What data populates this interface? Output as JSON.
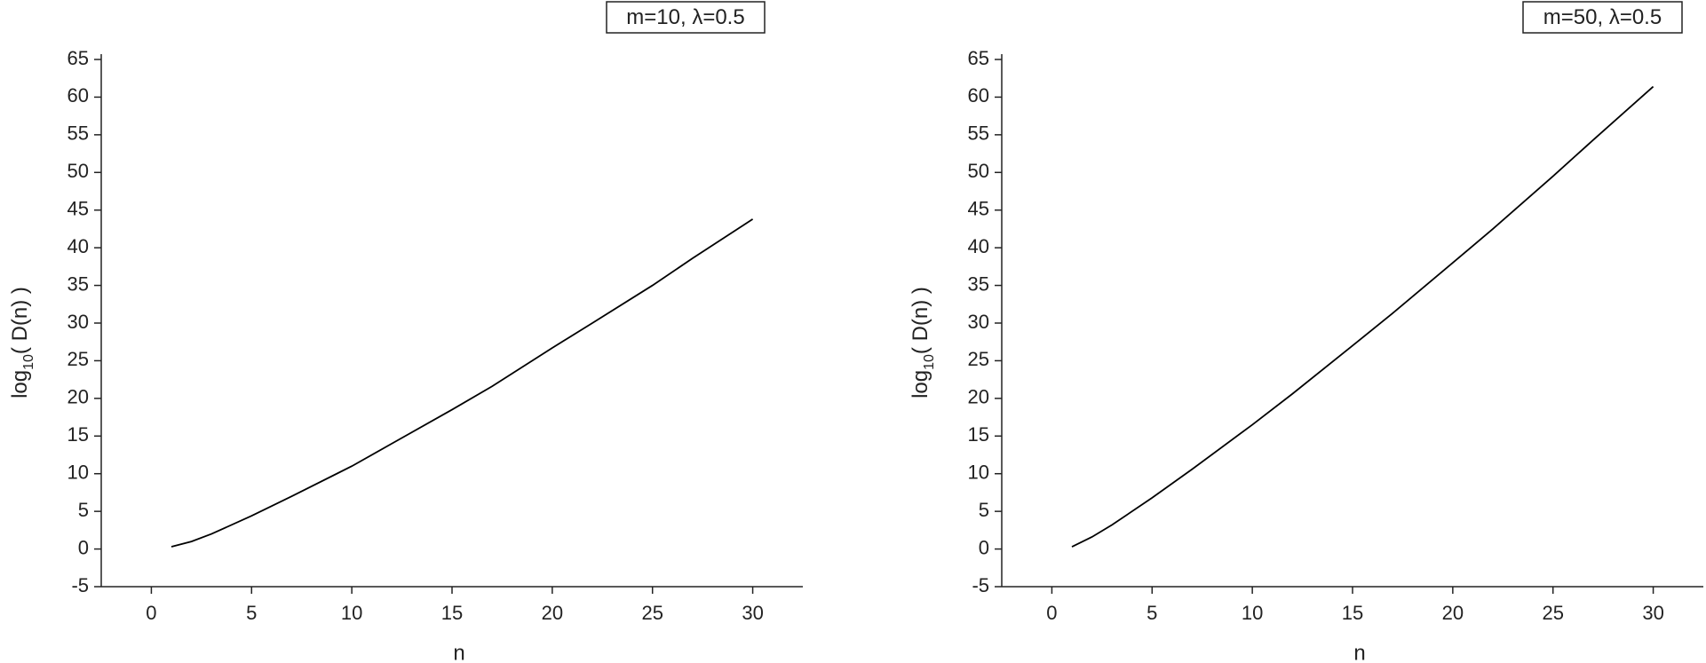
{
  "chart_data": [
    {
      "type": "line",
      "annotation": "m=10, λ=0.5",
      "xlabel": "n",
      "ylabel": [
        "log",
        "10",
        "( D(n) )"
      ],
      "x": [
        1,
        2,
        3,
        5,
        7,
        10,
        12,
        15,
        17,
        20,
        22,
        25,
        27,
        30
      ],
      "series": [
        {
          "color": "#000000",
          "values": [
            0.3,
            1.0,
            2.0,
            4.4,
            7.0,
            11.0,
            14.0,
            18.5,
            21.6,
            26.7,
            30.0,
            35.0,
            38.6,
            43.8
          ]
        }
      ],
      "xlim": [
        -2.5,
        32.5
      ],
      "xticks": [
        0,
        5,
        10,
        15,
        20,
        25,
        30
      ],
      "ylim": [
        -5,
        65
      ],
      "yticks": [
        -5,
        0,
        5,
        10,
        15,
        20,
        25,
        30,
        35,
        40,
        45,
        50,
        55,
        60,
        65
      ]
    },
    {
      "type": "line",
      "annotation": "m=50, λ=0.5",
      "xlabel": "n",
      "ylabel": [
        "log",
        "10",
        "( D(n) )"
      ],
      "x": [
        1,
        2,
        3,
        5,
        7,
        10,
        12,
        15,
        17,
        20,
        22,
        25,
        27,
        30
      ],
      "series": [
        {
          "color": "#000000",
          "values": [
            0.3,
            1.6,
            3.2,
            6.8,
            10.6,
            16.5,
            20.6,
            27.0,
            31.3,
            38.0,
            42.5,
            49.5,
            54.3,
            61.4
          ]
        }
      ],
      "xlim": [
        -2.5,
        32.5
      ],
      "xticks": [
        0,
        5,
        10,
        15,
        20,
        25,
        30
      ],
      "ylim": [
        -5,
        65
      ],
      "yticks": [
        -5,
        0,
        5,
        10,
        15,
        20,
        25,
        30,
        35,
        40,
        45,
        50,
        55,
        60,
        65
      ]
    }
  ]
}
